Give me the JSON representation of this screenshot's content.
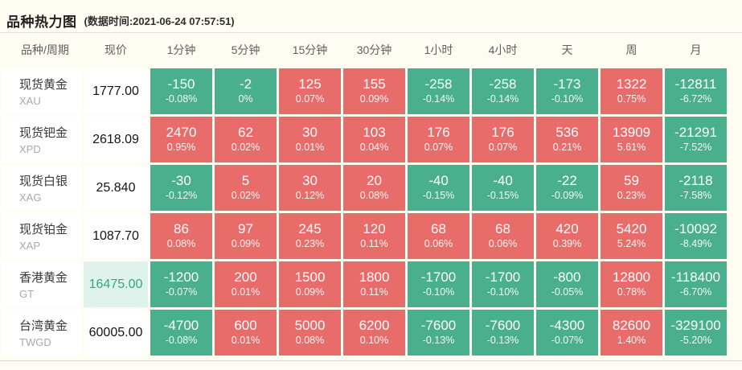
{
  "header": {
    "title": "品种热力图",
    "timestamp": "(数据时间:2021-06-24 07:57:51)"
  },
  "colors": {
    "up_cell": "#e76c6a",
    "down_cell": "#49af8c",
    "page_background": "#fffdf1",
    "price_highlight_bg": "#dff3ec",
    "price_highlight_text": "#2ea983"
  },
  "table": {
    "columns": [
      "品种/周期",
      "现价",
      "1分钟",
      "5分钟",
      "15分钟",
      "30分钟",
      "1小时",
      "4小时",
      "天",
      "周",
      "月"
    ],
    "rows": [
      {
        "name": "现货黄金",
        "symbol": "XAU",
        "price": "1777.00",
        "price_highlight": false,
        "cells": [
          {
            "value": "-150",
            "pct": "-0.08%",
            "trend": "down"
          },
          {
            "value": "-2",
            "pct": "0%",
            "trend": "down"
          },
          {
            "value": "125",
            "pct": "0.07%",
            "trend": "up"
          },
          {
            "value": "155",
            "pct": "0.09%",
            "trend": "up"
          },
          {
            "value": "-258",
            "pct": "-0.14%",
            "trend": "down"
          },
          {
            "value": "-258",
            "pct": "-0.14%",
            "trend": "down"
          },
          {
            "value": "-173",
            "pct": "-0.10%",
            "trend": "down"
          },
          {
            "value": "1322",
            "pct": "0.75%",
            "trend": "up"
          },
          {
            "value": "-12811",
            "pct": "-6.72%",
            "trend": "down"
          }
        ]
      },
      {
        "name": "现货钯金",
        "symbol": "XPD",
        "price": "2618.09",
        "price_highlight": false,
        "cells": [
          {
            "value": "2470",
            "pct": "0.95%",
            "trend": "up"
          },
          {
            "value": "62",
            "pct": "0.02%",
            "trend": "up"
          },
          {
            "value": "30",
            "pct": "0.01%",
            "trend": "up"
          },
          {
            "value": "103",
            "pct": "0.04%",
            "trend": "up"
          },
          {
            "value": "176",
            "pct": "0.07%",
            "trend": "up"
          },
          {
            "value": "176",
            "pct": "0.07%",
            "trend": "up"
          },
          {
            "value": "536",
            "pct": "0.21%",
            "trend": "up"
          },
          {
            "value": "13909",
            "pct": "5.61%",
            "trend": "up"
          },
          {
            "value": "-21291",
            "pct": "-7.52%",
            "trend": "down"
          }
        ]
      },
      {
        "name": "现货白银",
        "symbol": "XAG",
        "price": "25.840",
        "price_highlight": false,
        "cells": [
          {
            "value": "-30",
            "pct": "-0.12%",
            "trend": "down"
          },
          {
            "value": "5",
            "pct": "0.02%",
            "trend": "up"
          },
          {
            "value": "30",
            "pct": "0.12%",
            "trend": "up"
          },
          {
            "value": "20",
            "pct": "0.08%",
            "trend": "up"
          },
          {
            "value": "-40",
            "pct": "-0.15%",
            "trend": "down"
          },
          {
            "value": "-40",
            "pct": "-0.15%",
            "trend": "down"
          },
          {
            "value": "-22",
            "pct": "-0.09%",
            "trend": "down"
          },
          {
            "value": "59",
            "pct": "0.23%",
            "trend": "up"
          },
          {
            "value": "-2118",
            "pct": "-7.58%",
            "trend": "down"
          }
        ]
      },
      {
        "name": "现货铂金",
        "symbol": "XAP",
        "price": "1087.70",
        "price_highlight": false,
        "cells": [
          {
            "value": "86",
            "pct": "0.08%",
            "trend": "up"
          },
          {
            "value": "97",
            "pct": "0.09%",
            "trend": "up"
          },
          {
            "value": "245",
            "pct": "0.23%",
            "trend": "up"
          },
          {
            "value": "120",
            "pct": "0.11%",
            "trend": "up"
          },
          {
            "value": "68",
            "pct": "0.06%",
            "trend": "up"
          },
          {
            "value": "68",
            "pct": "0.06%",
            "trend": "up"
          },
          {
            "value": "420",
            "pct": "0.39%",
            "trend": "up"
          },
          {
            "value": "5420",
            "pct": "5.24%",
            "trend": "up"
          },
          {
            "value": "-10092",
            "pct": "-8.49%",
            "trend": "down"
          }
        ]
      },
      {
        "name": "香港黄金",
        "symbol": "GT",
        "price": "16475.00",
        "price_highlight": true,
        "cells": [
          {
            "value": "-1200",
            "pct": "-0.07%",
            "trend": "down"
          },
          {
            "value": "200",
            "pct": "0.01%",
            "trend": "up"
          },
          {
            "value": "1500",
            "pct": "0.09%",
            "trend": "up"
          },
          {
            "value": "1800",
            "pct": "0.11%",
            "trend": "up"
          },
          {
            "value": "-1700",
            "pct": "-0.10%",
            "trend": "down"
          },
          {
            "value": "-1700",
            "pct": "-0.10%",
            "trend": "down"
          },
          {
            "value": "-800",
            "pct": "-0.05%",
            "trend": "down"
          },
          {
            "value": "12800",
            "pct": "0.78%",
            "trend": "up"
          },
          {
            "value": "-118400",
            "pct": "-6.70%",
            "trend": "down"
          }
        ]
      },
      {
        "name": "台湾黄金",
        "symbol": "TWGD",
        "price": "60005.00",
        "price_highlight": false,
        "cells": [
          {
            "value": "-4700",
            "pct": "-0.08%",
            "trend": "down"
          },
          {
            "value": "600",
            "pct": "0.01%",
            "trend": "up"
          },
          {
            "value": "5000",
            "pct": "0.08%",
            "trend": "up"
          },
          {
            "value": "6200",
            "pct": "0.10%",
            "trend": "up"
          },
          {
            "value": "-7600",
            "pct": "-0.13%",
            "trend": "down"
          },
          {
            "value": "-7600",
            "pct": "-0.13%",
            "trend": "down"
          },
          {
            "value": "-4300",
            "pct": "-0.07%",
            "trend": "down"
          },
          {
            "value": "82600",
            "pct": "1.40%",
            "trend": "up"
          },
          {
            "value": "-329100",
            "pct": "-5.20%",
            "trend": "down"
          }
        ]
      }
    ]
  }
}
